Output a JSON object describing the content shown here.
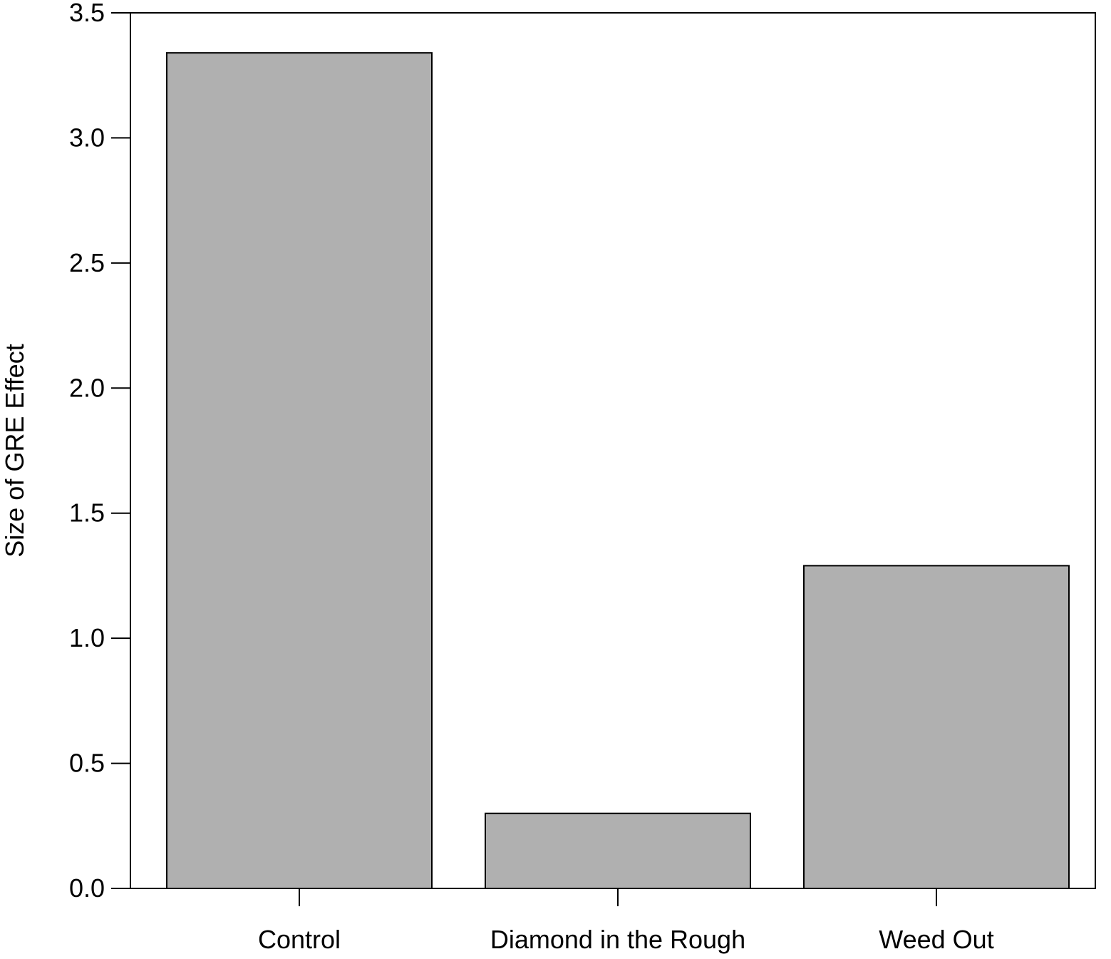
{
  "chart_data": {
    "type": "bar",
    "title": "",
    "xlabel": "",
    "ylabel": "Size of GRE Effect",
    "categories": [
      "Control",
      "Diamond in the Rough",
      "Weed Out"
    ],
    "values": [
      3.34,
      0.3,
      1.29
    ],
    "ylim": [
      0,
      3.5
    ],
    "yticks": [
      0.0,
      0.5,
      1.0,
      1.5,
      2.0,
      2.5,
      3.0,
      3.5
    ],
    "ytick_labels": [
      "0.0",
      "0.5",
      "1.0",
      "1.5",
      "2.0",
      "2.5",
      "3.0",
      "3.5"
    ],
    "grid": false,
    "legend": "none",
    "bar_color": "#b0b0b0",
    "bar_edge_color": "#000000"
  }
}
